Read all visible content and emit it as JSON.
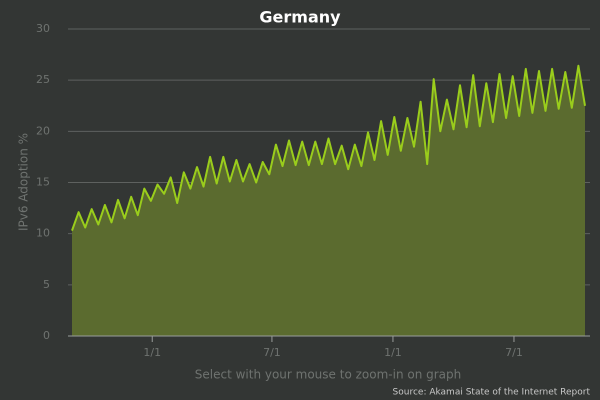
{
  "chart_data": {
    "type": "area",
    "title": "Germany",
    "ylabel": "IPv6 Adoption %",
    "footer": "Select with your mouse to zoom-in on graph",
    "source": "Source: Akamai State of the Internet Report",
    "color": "#9acd1c",
    "fill_color": "#5b6b2f",
    "grid": true,
    "x": [
      0,
      10,
      20,
      30,
      40,
      50,
      60,
      70,
      80,
      90,
      100,
      110,
      120,
      130,
      140,
      150,
      160,
      170,
      180,
      190,
      200,
      210,
      220,
      230,
      240,
      250,
      260,
      270,
      280,
      290,
      300,
      310,
      320,
      330,
      340,
      350,
      360,
      370,
      380,
      390,
      400,
      410,
      420,
      430,
      440,
      450,
      460,
      470,
      480,
      490,
      500,
      510,
      520,
      530,
      540,
      550,
      560,
      570,
      580,
      590,
      600,
      610,
      620,
      630,
      640,
      650,
      660,
      670,
      680,
      690,
      700,
      710,
      720,
      730,
      740,
      750,
      760,
      770,
      780
    ],
    "values": [
      10.3,
      12.1,
      10.6,
      12.4,
      10.9,
      12.8,
      11.1,
      13.3,
      11.5,
      13.6,
      11.8,
      14.4,
      13.2,
      14.8,
      13.9,
      15.5,
      13.0,
      16.0,
      14.4,
      16.5,
      14.6,
      17.5,
      14.9,
      17.5,
      15.1,
      17.2,
      15.1,
      16.8,
      15.0,
      17.0,
      15.8,
      18.7,
      16.6,
      19.1,
      16.7,
      19.0,
      16.7,
      19.0,
      16.8,
      19.3,
      16.8,
      18.6,
      16.3,
      18.7,
      16.6,
      19.9,
      17.2,
      21.0,
      17.7,
      21.4,
      18.1,
      21.3,
      18.5,
      22.9,
      16.8,
      25.1,
      20.0,
      23.1,
      20.2,
      24.5,
      20.4,
      25.5,
      20.5,
      24.7,
      20.9,
      25.6,
      21.3,
      25.4,
      21.5,
      26.1,
      21.8,
      25.9,
      22.0,
      26.1,
      22.2,
      25.8,
      22.3,
      26.4,
      22.5
    ],
    "xlim": [
      0,
      780
    ],
    "xticks": [
      {
        "value": 122,
        "label": "1/1"
      },
      {
        "value": 304,
        "label": "7/1"
      },
      {
        "value": 488,
        "label": "1/1"
      },
      {
        "value": 672,
        "label": "7/1"
      }
    ],
    "ylim": [
      0,
      30
    ],
    "yticks": [
      0,
      5,
      10,
      15,
      20,
      25,
      30
    ]
  }
}
